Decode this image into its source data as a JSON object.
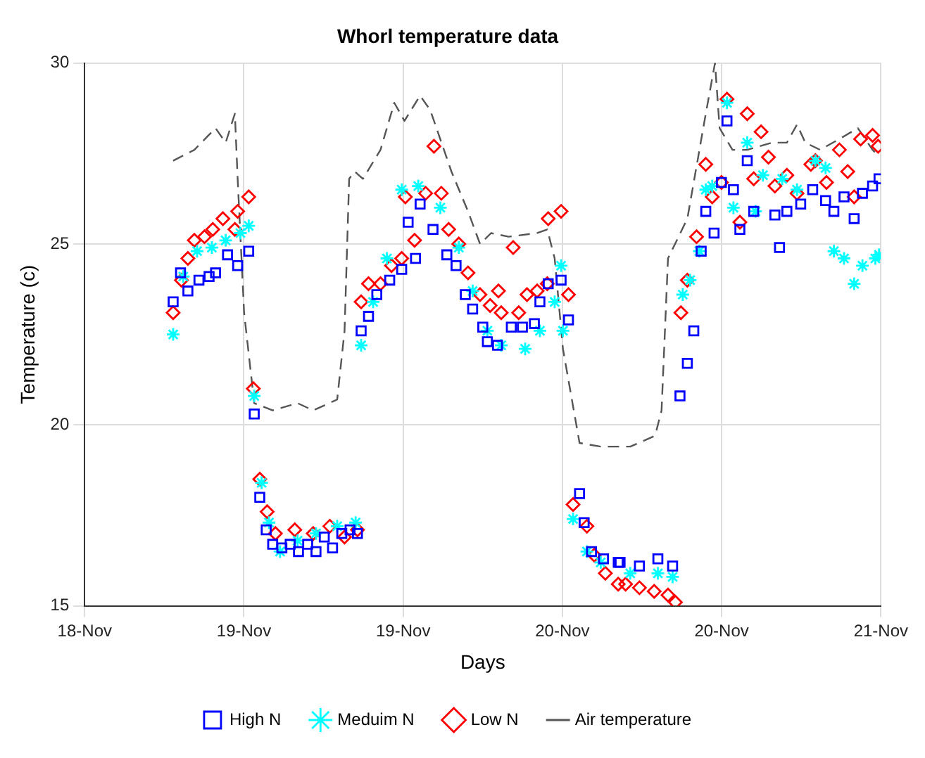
{
  "chart_data": {
    "type": "scatter",
    "title": "Whorl temperature data",
    "xlabel": "Days",
    "ylabel": "Temperature (c)",
    "xlim": [
      "--11-18T12:00",
      "--11-21T12:00"
    ],
    "xticks": [
      {
        "value": "--11-18T12:00",
        "label": "18-Nov"
      },
      {
        "value": "--11-19T02:24",
        "label": "19-Nov"
      },
      {
        "value": "--11-19T16:48",
        "label": "19-Nov"
      },
      {
        "value": "--11-20T07:12",
        "label": "20-Nov"
      },
      {
        "value": "--11-20T21:36",
        "label": "20-Nov"
      },
      {
        "value": "--11-21T12:00",
        "label": "21-Nov"
      }
    ],
    "ylim": [
      15,
      30
    ],
    "yticks": [
      15,
      20,
      25,
      30
    ],
    "grid": true,
    "legend": "bottom",
    "series": [
      {
        "name": "High N",
        "color": "#0000ff",
        "type": "scatter",
        "marker": "square",
        "x": [
          "--11-18T20:00",
          "--11-18T20:40",
          "--11-18T21:20",
          "--11-18T22:20",
          "--11-18T23:15",
          "--11-18T23:50",
          "--11-19T00:55",
          "--11-19T01:50",
          "--11-19T02:50",
          "--11-19T03:20",
          "--11-19T03:50",
          "--11-19T04:25",
          "--11-19T05:00",
          "--11-19T05:50",
          "--11-19T06:35",
          "--11-19T07:20",
          "--11-19T08:10",
          "--11-19T08:55",
          "--11-19T09:40",
          "--11-19T10:25",
          "--11-19T11:15",
          "--11-19T12:00",
          "--11-19T12:40",
          "--11-19T13:00",
          "--11-19T13:40",
          "--11-19T14:25",
          "--11-19T15:35",
          "--11-19T16:40",
          "--11-19T17:15",
          "--11-19T17:55",
          "--11-19T18:20",
          "--11-19T19:30",
          "--11-19T20:45",
          "--11-19T21:35",
          "--11-19T22:25",
          "--11-19T23:05",
          "--11-20T00:00",
          "--11-20T00:25",
          "--11-20T01:20",
          "--11-20T02:35",
          "--11-20T03:35",
          "--11-20T04:40",
          "--11-20T05:10",
          "--11-20T05:55",
          "--11-20T07:05",
          "--11-20T07:45",
          "--11-20T08:45",
          "--11-20T09:10",
          "--11-20T09:50",
          "--11-20T10:55",
          "--11-20T12:15",
          "--11-20T12:25",
          "--11-20T14:10",
          "--11-20T15:50",
          "--11-20T17:10",
          "--11-20T17:50",
          "--11-20T18:30",
          "--11-20T19:05",
          "--11-20T19:45",
          "--11-20T20:10",
          "--11-20T20:55",
          "--11-20T21:35",
          "--11-20T22:05",
          "--11-20T22:40",
          "--11-20T23:15",
          "--11-20T23:55",
          "--11-21T00:30",
          "--11-21T02:25",
          "--11-21T02:50",
          "--11-21T03:30",
          "--11-21T04:45",
          "--11-21T05:50",
          "--11-21T07:00",
          "--11-21T07:45",
          "--11-21T08:40",
          "--11-21T09:35",
          "--11-21T10:20",
          "--11-21T11:15",
          "--11-21T11:50"
        ],
        "values": [
          23.4,
          24.2,
          23.7,
          24.0,
          24.1,
          24.2,
          24.7,
          24.4,
          24.8,
          20.3,
          18.0,
          17.1,
          16.7,
          16.6,
          16.7,
          16.5,
          16.7,
          16.5,
          16.9,
          16.6,
          17.0,
          17.1,
          17.0,
          22.6,
          23.0,
          23.6,
          24.0,
          24.3,
          25.6,
          24.6,
          26.1,
          25.4,
          24.7,
          24.4,
          23.6,
          23.2,
          22.7,
          22.3,
          22.2,
          22.7,
          22.7,
          22.8,
          23.4,
          23.9,
          24.0,
          22.9,
          18.1,
          17.3,
          16.5,
          16.3,
          16.2,
          16.2,
          16.1,
          16.3,
          16.1,
          20.8,
          21.7,
          22.6,
          24.8,
          25.9,
          25.3,
          26.7,
          28.4,
          26.5,
          25.4,
          27.3,
          25.9,
          25.8,
          24.9,
          25.9,
          26.1,
          26.5,
          26.2,
          25.9,
          26.3,
          25.7,
          26.4,
          26.6,
          26.8
        ]
      },
      {
        "name": "Meduim N",
        "color": "#00ffff",
        "type": "scatter",
        "marker": "cross",
        "x": [
          "--11-18T20:00",
          "--11-18T20:55",
          "--11-18T22:10",
          "--11-18T23:30",
          "--11-19T00:45",
          "--11-19T02:05",
          "--11-19T02:50",
          "--11-19T03:20",
          "--11-19T04:00",
          "--11-19T04:40",
          "--11-19T05:40",
          "--11-19T07:15",
          "--11-19T08:55",
          "--11-19T10:50",
          "--11-19T12:30",
          "--11-19T13:00",
          "--11-19T14:05",
          "--11-19T15:20",
          "--11-19T16:40",
          "--11-19T18:10",
          "--11-19T20:10",
          "--11-19T21:50",
          "--11-19T23:05",
          "--11-20T00:25",
          "--11-20T01:40",
          "--11-20T03:50",
          "--11-20T05:10",
          "--11-20T06:30",
          "--11-20T07:05",
          "--11-20T07:15",
          "--11-20T08:10",
          "--11-20T09:25",
          "--11-20T10:40",
          "--11-20T13:20",
          "--11-20T15:50",
          "--11-20T17:10",
          "--11-20T18:05",
          "--11-20T18:45",
          "--11-20T19:35",
          "--11-20T20:10",
          "--11-20T20:45",
          "--11-20T22:05",
          "--11-20T22:40",
          "--11-20T23:55",
          "--11-21T00:40",
          "--11-21T01:20",
          "--11-21T03:05",
          "--11-21T04:25",
          "--11-21T06:05",
          "--11-21T07:00",
          "--11-21T07:45",
          "--11-21T08:40",
          "--11-21T09:35",
          "--11-21T10:20",
          "--11-21T11:30",
          "--11-21T11:50"
        ],
        "values": [
          22.5,
          24.1,
          24.8,
          24.9,
          25.1,
          25.3,
          25.5,
          20.8,
          18.4,
          17.3,
          16.5,
          16.8,
          17.0,
          17.2,
          17.3,
          22.2,
          23.4,
          24.6,
          26.5,
          26.6,
          26.0,
          24.9,
          23.7,
          22.6,
          22.2,
          22.1,
          22.6,
          23.4,
          24.4,
          22.6,
          17.4,
          16.5,
          16.2,
          15.9,
          15.9,
          15.8,
          23.6,
          24.0,
          24.8,
          26.5,
          26.6,
          28.9,
          26.0,
          27.8,
          25.9,
          26.9,
          26.8,
          26.5,
          27.3,
          27.1,
          24.8,
          24.6,
          23.9,
          24.4,
          24.6,
          24.7
        ]
      },
      {
        "name": "Low N",
        "color": "#ff0000",
        "type": "scatter",
        "marker": "diamond",
        "x": [
          "--11-18T20:00",
          "--11-18T20:45",
          "--11-18T21:20",
          "--11-18T21:55",
          "--11-18T22:50",
          "--11-18T23:35",
          "--11-19T00:30",
          "--11-19T01:35",
          "--11-19T01:50",
          "--11-19T02:50",
          "--11-19T03:15",
          "--11-19T03:50",
          "--11-19T04:30",
          "--11-19T05:15",
          "--11-19T07:00",
          "--11-19T08:40",
          "--11-19T10:10",
          "--11-19T11:30",
          "--11-19T12:40",
          "--11-19T13:00",
          "--11-19T13:40",
          "--11-19T14:45",
          "--11-19T15:45",
          "--11-19T16:40",
          "--11-19T17:00",
          "--11-19T17:50",
          "--11-19T18:50",
          "--11-19T19:35",
          "--11-19T20:15",
          "--11-19T20:55",
          "--11-19T21:50",
          "--11-19T22:40",
          "--11-19T23:45",
          "--11-20T00:40",
          "--11-20T01:25",
          "--11-20T01:40",
          "--11-20T02:45",
          "--11-20T03:15",
          "--11-20T04:00",
          "--11-20T04:55",
          "--11-20T05:50",
          "--11-20T05:55",
          "--11-20T07:05",
          "--11-20T07:45",
          "--11-20T08:10",
          "--11-20T09:25",
          "--11-20T10:05",
          "--11-20T11:05",
          "--11-20T12:15",
          "--11-20T12:55",
          "--11-20T14:10",
          "--11-20T15:30",
          "--11-20T16:45",
          "--11-20T17:25",
          "--11-20T17:55",
          "--11-20T18:30",
          "--11-20T19:20",
          "--11-20T20:10",
          "--11-20T20:45",
          "--11-20T21:35",
          "--11-20T22:05",
          "--11-20T23:15",
          "--11-20T23:55",
          "--11-21T00:30",
          "--11-21T01:10",
          "--11-21T01:50",
          "--11-21T02:25",
          "--11-21T03:30",
          "--11-21T04:25",
          "--11-21T05:40",
          "--11-21T06:05",
          "--11-21T07:05",
          "--11-21T08:15",
          "--11-21T09:00",
          "--11-21T09:35",
          "--11-21T10:10",
          "--11-21T11:15",
          "--11-21T11:45"
        ],
        "values": [
          23.1,
          24.0,
          24.6,
          25.1,
          25.2,
          25.4,
          25.7,
          25.4,
          25.9,
          26.3,
          21.0,
          18.5,
          17.6,
          17.0,
          17.1,
          17.0,
          17.2,
          16.9,
          17.1,
          23.4,
          23.9,
          23.9,
          24.4,
          24.6,
          26.3,
          25.1,
          26.4,
          27.7,
          26.4,
          25.4,
          25.0,
          24.2,
          23.6,
          23.3,
          23.7,
          23.1,
          24.9,
          23.1,
          23.6,
          23.7,
          23.9,
          25.7,
          25.9,
          23.6,
          17.8,
          17.2,
          16.4,
          15.9,
          15.6,
          15.6,
          15.5,
          15.4,
          15.3,
          15.1,
          23.1,
          24.0,
          25.2,
          27.2,
          26.3,
          26.7,
          29.0,
          25.6,
          28.6,
          26.8,
          28.1,
          27.4,
          26.6,
          26.9,
          26.4,
          27.2,
          27.3,
          26.7,
          27.6,
          27.0,
          26.3,
          27.9,
          28.0,
          27.7
        ]
      },
      {
        "name": "Air temperature",
        "color": "#555555",
        "type": "line",
        "marker": "none",
        "line_style": "dashed",
        "x": [
          "--11-18T20:00",
          "--11-18T21:55",
          "--11-18T23:50",
          "--11-19T00:45",
          "--11-19T01:35",
          "--11-19T01:50",
          "--11-19T02:25",
          "--11-19T03:20",
          "--11-19T05:00",
          "--11-19T07:15",
          "--11-19T08:40",
          "--11-19T10:50",
          "--11-19T11:30",
          "--11-19T11:55",
          "--11-19T12:25",
          "--11-19T13:10",
          "--11-19T14:45",
          "--11-19T16:00",
          "--11-19T16:55",
          "--11-19T18:20",
          "--11-19T19:15",
          "--11-19T21:10",
          "--11-19T22:40",
          "--11-19T23:45",
          "--11-20T00:45",
          "--11-20T02:20",
          "--11-20T04:55",
          "--11-20T05:50",
          "--11-20T06:30",
          "--11-20T07:15",
          "--11-20T08:45",
          "--11-20T10:40",
          "--11-20T12:15",
          "--11-20T13:20",
          "--11-20T15:35",
          "--11-20T16:10",
          "--11-20T16:45",
          "--11-20T18:30",
          "--11-20T20:10",
          "--11-20T21:00",
          "--11-20T21:25",
          "--11-20T22:35",
          "--11-20T23:55",
          "--11-21T02:10",
          "--11-21T03:30",
          "--11-21T04:25",
          "--11-21T05:10",
          "--11-21T06:30",
          "--11-21T08:15",
          "--11-21T09:55",
          "--11-21T11:15",
          "--11-21T11:35"
        ],
        "values": [
          27.3,
          27.6,
          28.2,
          27.8,
          28.6,
          26.8,
          23.1,
          20.6,
          20.4,
          20.6,
          20.4,
          20.7,
          22.6,
          26.8,
          27.0,
          26.8,
          27.6,
          28.9,
          28.4,
          29.1,
          28.7,
          27.0,
          25.9,
          25.0,
          25.3,
          25.2,
          25.3,
          25.4,
          24.6,
          22.1,
          19.5,
          19.4,
          19.4,
          19.4,
          19.7,
          20.4,
          24.6,
          25.7,
          28.6,
          30.0,
          28.2,
          27.6,
          27.6,
          27.8,
          27.8,
          28.3,
          27.8,
          27.6,
          27.9,
          28.2,
          27.6,
          27.5
        ]
      }
    ]
  }
}
